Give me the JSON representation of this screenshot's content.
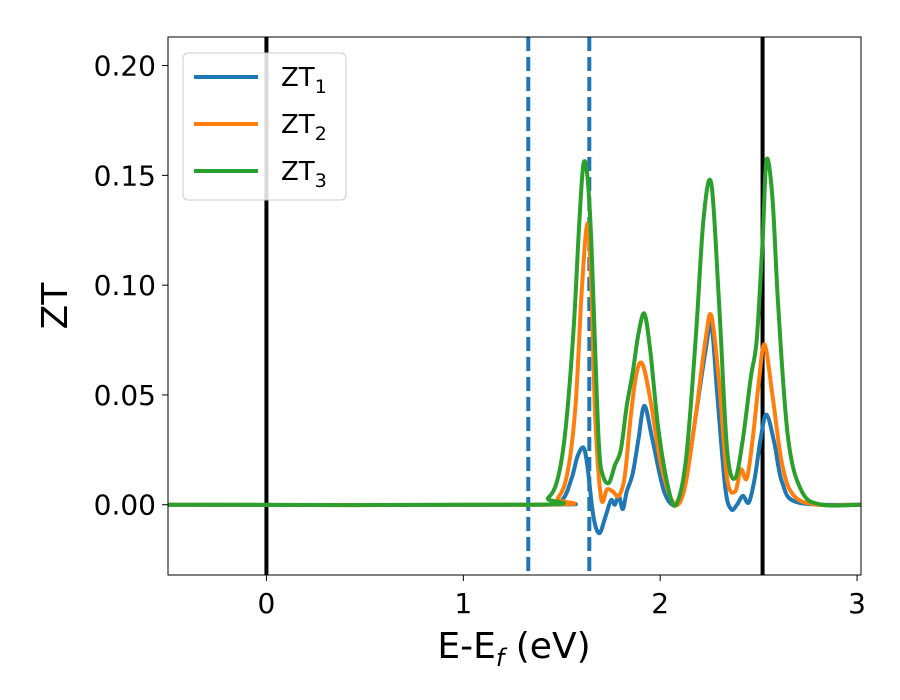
{
  "chart_data": {
    "type": "line",
    "xlabel": {
      "main": "E-E",
      "sub": "f",
      "suffix": " (eV)"
    },
    "ylabel": "ZT",
    "xlim": [
      -0.5,
      3.02
    ],
    "ylim": [
      -0.032,
      0.213
    ],
    "xticks": [
      0,
      1,
      2,
      3
    ],
    "xtick_labels": [
      "0",
      "1",
      "2",
      "3"
    ],
    "yticks": [
      0.0,
      0.05,
      0.1,
      0.15,
      0.2
    ],
    "ytick_labels": [
      "0.00",
      "0.05",
      "0.10",
      "0.15",
      "0.20"
    ],
    "grid": false,
    "legend_position": "top-left",
    "vlines": [
      {
        "x": 0.0,
        "style": "solid",
        "color": "#000000"
      },
      {
        "x": 2.52,
        "style": "solid",
        "color": "#000000"
      },
      {
        "x": 1.33,
        "style": "dashed",
        "color": "#1f77b4"
      },
      {
        "x": 1.64,
        "style": "dashed",
        "color": "#1f77b4"
      }
    ],
    "series": [
      {
        "name": "ZT",
        "name_sub": "1",
        "color": "#1f77b4",
        "x": [
          -0.5,
          1.4,
          1.5,
          1.55,
          1.58,
          1.61,
          1.63,
          1.66,
          1.69,
          1.72,
          1.75,
          1.77,
          1.79,
          1.81,
          1.83,
          1.86,
          1.89,
          1.92,
          1.96,
          2.02,
          2.08,
          2.13,
          2.18,
          2.23,
          2.26,
          2.29,
          2.33,
          2.36,
          2.39,
          2.42,
          2.45,
          2.48,
          2.51,
          2.54,
          2.58,
          2.62,
          2.7,
          3.02
        ],
        "y": [
          0,
          0,
          0.002,
          0.012,
          0.022,
          0.026,
          0.018,
          -0.005,
          -0.013,
          -0.006,
          0.002,
          0.0,
          0.004,
          -0.002,
          0.006,
          0.014,
          0.03,
          0.045,
          0.03,
          0.006,
          0.0,
          0.012,
          0.04,
          0.07,
          0.082,
          0.05,
          0.008,
          -0.002,
          0.0,
          0.004,
          0.001,
          0.012,
          0.03,
          0.041,
          0.028,
          0.01,
          0.001,
          0
        ]
      },
      {
        "name": "ZT",
        "name_sub": "2",
        "color": "#ff7f0e",
        "x": [
          -0.5,
          1.4,
          1.48,
          1.53,
          1.57,
          1.6,
          1.63,
          1.65,
          1.67,
          1.7,
          1.73,
          1.76,
          1.79,
          1.82,
          1.85,
          1.88,
          1.91,
          1.95,
          2.0,
          2.05,
          2.09,
          2.13,
          2.18,
          2.23,
          2.26,
          2.3,
          2.34,
          2.38,
          2.41,
          2.44,
          2.47,
          2.5,
          2.53,
          2.57,
          2.62,
          2.68,
          2.8,
          3.02
        ],
        "y": [
          0,
          0,
          0.003,
          0.015,
          0.045,
          0.095,
          0.128,
          0.1,
          0.04,
          0.003,
          0.007,
          0.006,
          0.004,
          0.013,
          0.04,
          0.06,
          0.064,
          0.048,
          0.02,
          0.004,
          0.0,
          0.01,
          0.04,
          0.075,
          0.086,
          0.055,
          0.012,
          0.006,
          0.016,
          0.012,
          0.03,
          0.055,
          0.073,
          0.05,
          0.018,
          0.004,
          0.0,
          0
        ]
      },
      {
        "name": "ZT",
        "name_sub": "3",
        "color": "#2ca02c",
        "x": [
          -0.5,
          1.35,
          1.43,
          1.48,
          1.52,
          1.56,
          1.59,
          1.61,
          1.63,
          1.65,
          1.67,
          1.69,
          1.71,
          1.74,
          1.77,
          1.8,
          1.83,
          1.86,
          1.89,
          1.92,
          1.95,
          1.99,
          2.04,
          2.08,
          2.13,
          2.18,
          2.22,
          2.26,
          2.3,
          2.34,
          2.38,
          2.42,
          2.46,
          2.49,
          2.52,
          2.54,
          2.57,
          2.6,
          2.65,
          2.72,
          2.82,
          3.02
        ],
        "y": [
          0,
          0,
          0.003,
          0.012,
          0.035,
          0.08,
          0.13,
          0.155,
          0.15,
          0.12,
          0.07,
          0.025,
          0.013,
          0.01,
          0.018,
          0.025,
          0.045,
          0.06,
          0.078,
          0.087,
          0.07,
          0.035,
          0.008,
          0.0,
          0.02,
          0.075,
          0.13,
          0.146,
          0.09,
          0.025,
          0.012,
          0.03,
          0.058,
          0.075,
          0.12,
          0.157,
          0.14,
          0.09,
          0.03,
          0.006,
          0.0,
          0
        ]
      }
    ]
  }
}
